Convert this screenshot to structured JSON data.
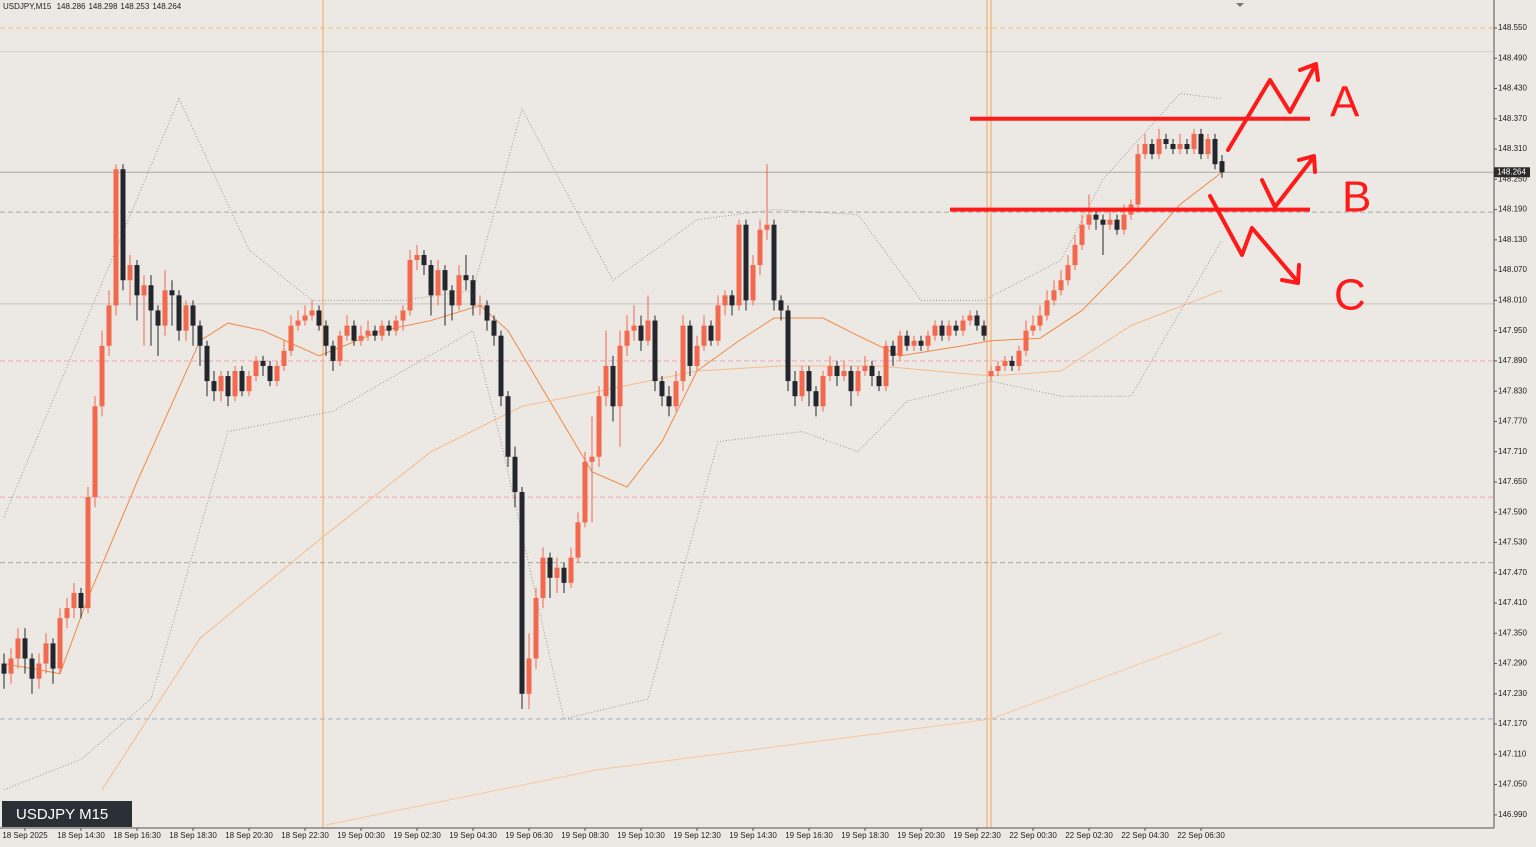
{
  "chart_data": {
    "type": "candlestick",
    "symbol": "USDJPY,M15",
    "badge": "USDJPY M15",
    "bull_color": "#f2694d",
    "bear_color": "#23272d",
    "ylim": [
      146.964,
      148.6055
    ],
    "yticks": [
      {
        "value": 148.55,
        "label": "148.550"
      },
      {
        "value": 148.49,
        "label": "148.490"
      },
      {
        "value": 148.43,
        "label": "148.430"
      },
      {
        "value": 148.37,
        "label": "148.370"
      },
      {
        "value": 148.31,
        "label": "148.310"
      },
      {
        "value": 148.25,
        "label": "148.250"
      },
      {
        "value": 148.19,
        "label": "148.190"
      },
      {
        "value": 148.13,
        "label": "148.130"
      },
      {
        "value": 148.07,
        "label": "148.070"
      },
      {
        "value": 148.01,
        "label": "148.010"
      },
      {
        "value": 147.95,
        "label": "147.950"
      },
      {
        "value": 147.89,
        "label": "147.890"
      },
      {
        "value": 147.83,
        "label": "147.830"
      },
      {
        "value": 147.77,
        "label": "147.770"
      },
      {
        "value": 147.71,
        "label": "147.710"
      },
      {
        "value": 147.65,
        "label": "147.650"
      },
      {
        "value": 147.59,
        "label": "147.590"
      },
      {
        "value": 147.53,
        "label": "147.530"
      },
      {
        "value": 147.47,
        "label": "147.470"
      },
      {
        "value": 147.41,
        "label": "147.410"
      },
      {
        "value": 147.35,
        "label": "147.350"
      },
      {
        "value": 147.29,
        "label": "147.290"
      },
      {
        "value": 147.23,
        "label": "147.230"
      },
      {
        "value": 147.17,
        "label": "147.170"
      },
      {
        "value": 147.11,
        "label": "147.110"
      },
      {
        "value": 147.05,
        "label": "147.050"
      },
      {
        "value": 146.99,
        "label": "146.990"
      }
    ],
    "categories": [
      null,
      null,
      null,
      "18 Sep 2025",
      null,
      null,
      null,
      null,
      null,
      null,
      null,
      "18 Sep 14:30",
      null,
      null,
      null,
      null,
      null,
      null,
      null,
      "18 Sep 16:30",
      null,
      null,
      null,
      null,
      null,
      null,
      null,
      "18 Sep 18:30",
      null,
      null,
      null,
      null,
      null,
      null,
      null,
      "18 Sep 20:30",
      null,
      null,
      null,
      null,
      null,
      null,
      null,
      "18 Sep 22:30",
      null,
      null,
      null,
      null,
      null,
      null,
      null,
      "19 Sep 00:30",
      null,
      null,
      null,
      null,
      null,
      null,
      null,
      "19 Sep 02:30",
      null,
      null,
      null,
      null,
      null,
      null,
      null,
      "19 Sep 04:30",
      null,
      null,
      null,
      null,
      null,
      null,
      null,
      "19 Sep 06:30",
      null,
      null,
      null,
      null,
      null,
      null,
      null,
      "19 Sep 08:30",
      null,
      null,
      null,
      null,
      null,
      null,
      null,
      "19 Sep 10:30",
      null,
      null,
      null,
      null,
      null,
      null,
      null,
      "19 Sep 12:30",
      null,
      null,
      null,
      null,
      null,
      null,
      null,
      "19 Sep 14:30",
      null,
      null,
      null,
      null,
      null,
      null,
      null,
      "19 Sep 16:30",
      null,
      null,
      null,
      null,
      null,
      null,
      null,
      "19 Sep 18:30",
      null,
      null,
      null,
      null,
      null,
      null,
      null,
      "19 Sep 20:30",
      null,
      null,
      null,
      null,
      null,
      null,
      null,
      "19 Sep 22:30",
      null,
      null,
      null,
      null,
      null,
      null,
      null,
      "22 Sep 00:30",
      null,
      null,
      null,
      null,
      null,
      null,
      null,
      "22 Sep 02:30",
      null,
      null,
      null,
      null,
      null,
      null,
      null,
      "22 Sep 04:30",
      null,
      null,
      null,
      null,
      null,
      null,
      null,
      "22 Sep 06:30",
      null,
      null,
      null
    ],
    "open": [
      147.29,
      147.27,
      147.3,
      147.34,
      147.3,
      147.26,
      147.29,
      147.33,
      147.28,
      147.38,
      147.4,
      147.43,
      147.4,
      147.62,
      147.8,
      147.92,
      148.0,
      148.27,
      148.05,
      148.08,
      148.02,
      148.04,
      147.99,
      147.96,
      148.03,
      148.02,
      147.95,
      148.0,
      147.96,
      147.92,
      147.85,
      147.83,
      147.86,
      147.82,
      147.87,
      147.83,
      147.86,
      147.89,
      147.88,
      147.85,
      147.88,
      147.91,
      147.96,
      147.97,
      147.98,
      147.99,
      147.96,
      147.92,
      147.89,
      147.94,
      147.96,
      147.93,
      147.94,
      147.95,
      147.94,
      147.96,
      147.95,
      147.97,
      147.99,
      148.09,
      148.1,
      148.08,
      148.02,
      148.07,
      148.03,
      148.0,
      148.06,
      148.05,
      148.0,
      148.0,
      147.97,
      147.94,
      147.82,
      147.7,
      147.63,
      147.23,
      147.3,
      147.42,
      147.5,
      147.46,
      147.48,
      147.45,
      147.5,
      147.57,
      147.69,
      147.7,
      147.82,
      147.88,
      147.8,
      147.92,
      147.95,
      147.96,
      147.93,
      147.97,
      147.85,
      147.82,
      147.8,
      147.85,
      147.96,
      147.88,
      147.92,
      147.96,
      147.93,
      148.0,
      148.02,
      148.0,
      148.16,
      148.01,
      148.08,
      148.15,
      148.16,
      148.01,
      147.99,
      147.85,
      147.82,
      147.87,
      147.83,
      147.8,
      147.86,
      147.88,
      147.86,
      147.87,
      147.83,
      147.87,
      147.88,
      147.86,
      147.84,
      147.92,
      147.9,
      147.94,
      147.92,
      147.93,
      147.92,
      147.94,
      147.96,
      147.94,
      147.96,
      147.95,
      147.97,
      147.98,
      147.96,
      147.86,
      147.87,
      147.88,
      147.89,
      147.88,
      147.91,
      147.95,
      147.96,
      147.98,
      148.01,
      148.03,
      148.05,
      148.08,
      148.12,
      148.16,
      148.18,
      148.17,
      148.16,
      148.17,
      148.15,
      148.18,
      148.2,
      148.3,
      148.32,
      148.3,
      148.33,
      148.32,
      148.31,
      148.32,
      148.31,
      148.34,
      148.3,
      148.33,
      148.286
    ],
    "high": [
      147.31,
      147.32,
      147.36,
      147.36,
      147.31,
      147.31,
      147.35,
      147.34,
      147.4,
      147.42,
      147.45,
      147.44,
      147.64,
      147.82,
      147.95,
      148.03,
      148.28,
      148.28,
      148.1,
      148.09,
      148.06,
      148.06,
      148.0,
      148.07,
      148.05,
      148.03,
      148.01,
      148.01,
      147.97,
      147.93,
      147.87,
      147.87,
      147.87,
      147.88,
      147.88,
      147.87,
      147.9,
      147.9,
      147.89,
      147.89,
      147.93,
      147.98,
      147.99,
      148.0,
      148.01,
      148.0,
      147.97,
      147.93,
      147.95,
      147.98,
      147.97,
      147.96,
      147.97,
      147.96,
      147.97,
      147.97,
      147.98,
      148.0,
      148.11,
      148.12,
      148.11,
      148.09,
      148.09,
      148.08,
      148.04,
      148.08,
      148.1,
      148.06,
      148.02,
      148.01,
      147.98,
      147.95,
      147.83,
      147.72,
      147.64,
      147.35,
      147.44,
      147.52,
      147.51,
      147.5,
      147.49,
      147.52,
      147.59,
      147.71,
      147.78,
      147.84,
      147.95,
      147.9,
      147.95,
      147.98,
      148.0,
      147.98,
      148.02,
      147.98,
      147.86,
      147.84,
      147.87,
      147.98,
      147.97,
      147.94,
      147.98,
      147.97,
      148.02,
      148.03,
      148.03,
      148.17,
      148.17,
      148.1,
      148.17,
      148.28,
      148.17,
      148.02,
      148.0,
      147.87,
      147.88,
      147.88,
      147.84,
      147.87,
      147.9,
      147.89,
      147.89,
      147.88,
      147.88,
      147.9,
      147.89,
      147.87,
      147.93,
      147.93,
      147.95,
      147.95,
      147.94,
      147.94,
      147.95,
      147.97,
      147.97,
      147.97,
      147.97,
      147.98,
      147.99,
      147.99,
      147.97,
      147.88,
      147.89,
      147.9,
      147.9,
      147.92,
      147.97,
      147.98,
      148.0,
      148.03,
      148.05,
      148.07,
      148.1,
      148.14,
      148.18,
      148.22,
      148.19,
      148.18,
      148.19,
      148.18,
      148.2,
      148.21,
      148.32,
      148.34,
      148.33,
      148.35,
      148.34,
      148.33,
      148.34,
      148.33,
      148.35,
      148.35,
      148.34,
      148.34,
      148.298
    ],
    "low": [
      147.24,
      147.25,
      147.28,
      147.27,
      147.23,
      147.24,
      147.27,
      147.25,
      147.27,
      147.36,
      147.38,
      147.38,
      147.39,
      147.6,
      147.78,
      147.9,
      147.98,
      148.03,
      148.0,
      147.97,
      147.92,
      147.92,
      147.9,
      147.94,
      147.96,
      147.93,
      147.93,
      147.92,
      147.88,
      147.82,
      147.81,
      147.81,
      147.8,
      147.81,
      147.82,
      147.82,
      147.85,
      147.86,
      147.84,
      147.84,
      147.87,
      147.9,
      147.95,
      147.96,
      147.97,
      147.95,
      147.9,
      147.87,
      147.88,
      147.93,
      147.92,
      147.92,
      147.93,
      147.93,
      147.93,
      147.94,
      147.94,
      147.95,
      147.98,
      148.07,
      148.06,
      147.98,
      148.0,
      147.96,
      147.97,
      147.99,
      148.03,
      147.98,
      147.98,
      147.95,
      147.92,
      147.8,
      147.68,
      147.6,
      147.2,
      147.2,
      147.28,
      147.4,
      147.42,
      147.43,
      147.43,
      147.44,
      147.49,
      147.56,
      147.57,
      147.68,
      147.8,
      147.77,
      147.72,
      147.9,
      147.93,
      147.91,
      147.92,
      147.83,
      147.8,
      147.78,
      147.79,
      147.83,
      147.86,
      147.87,
      147.91,
      147.92,
      147.92,
      147.98,
      147.98,
      147.99,
      147.99,
      148.0,
      148.06,
      148.13,
      147.99,
      147.97,
      147.83,
      147.8,
      147.81,
      147.8,
      147.78,
      147.79,
      147.85,
      147.84,
      147.85,
      147.8,
      147.82,
      147.86,
      147.84,
      147.83,
      147.83,
      147.88,
      147.89,
      147.91,
      147.91,
      147.91,
      147.91,
      147.93,
      147.93,
      147.93,
      147.94,
      147.94,
      147.96,
      147.95,
      147.93,
      147.85,
      147.86,
      147.87,
      147.87,
      147.87,
      147.9,
      147.94,
      147.95,
      147.97,
      148.0,
      148.02,
      148.04,
      148.07,
      148.11,
      148.15,
      148.15,
      148.1,
      148.15,
      148.14,
      148.14,
      148.17,
      148.19,
      148.29,
      148.29,
      148.29,
      148.31,
      148.3,
      148.3,
      148.3,
      148.3,
      148.29,
      148.29,
      148.27,
      148.253
    ],
    "close": [
      147.27,
      147.3,
      147.34,
      147.3,
      147.26,
      147.29,
      147.33,
      147.28,
      147.38,
      147.4,
      147.43,
      147.4,
      147.62,
      147.8,
      147.92,
      148.0,
      148.27,
      148.05,
      148.08,
      148.02,
      148.04,
      147.99,
      147.96,
      148.03,
      148.02,
      147.95,
      148.0,
      147.96,
      147.92,
      147.85,
      147.83,
      147.86,
      147.82,
      147.87,
      147.83,
      147.86,
      147.89,
      147.88,
      147.85,
      147.88,
      147.91,
      147.96,
      147.97,
      147.98,
      147.99,
      147.96,
      147.92,
      147.89,
      147.94,
      147.96,
      147.93,
      147.94,
      147.95,
      147.94,
      147.96,
      147.95,
      147.97,
      147.99,
      148.09,
      148.1,
      148.08,
      148.02,
      148.07,
      148.03,
      148.0,
      148.06,
      148.05,
      148.0,
      148.0,
      147.97,
      147.94,
      147.82,
      147.7,
      147.63,
      147.23,
      147.3,
      147.42,
      147.5,
      147.46,
      147.48,
      147.45,
      147.5,
      147.57,
      147.69,
      147.7,
      147.82,
      147.88,
      147.8,
      147.92,
      147.95,
      147.96,
      147.93,
      147.97,
      147.85,
      147.82,
      147.8,
      147.85,
      147.96,
      147.88,
      147.92,
      147.96,
      147.93,
      148.0,
      148.02,
      148.0,
      148.16,
      148.01,
      148.08,
      148.15,
      148.16,
      148.01,
      147.99,
      147.85,
      147.82,
      147.87,
      147.83,
      147.8,
      147.86,
      147.88,
      147.86,
      147.87,
      147.83,
      147.87,
      147.88,
      147.86,
      147.84,
      147.92,
      147.9,
      147.94,
      147.92,
      147.93,
      147.92,
      147.94,
      147.96,
      147.94,
      147.96,
      147.95,
      147.97,
      147.98,
      147.96,
      147.94,
      147.87,
      147.88,
      147.89,
      147.88,
      147.91,
      147.95,
      147.96,
      147.98,
      148.01,
      148.03,
      148.05,
      148.08,
      148.12,
      148.16,
      148.18,
      148.17,
      148.16,
      148.17,
      148.15,
      148.18,
      148.2,
      148.3,
      148.32,
      148.3,
      148.33,
      148.32,
      148.31,
      148.32,
      148.31,
      148.34,
      148.3,
      148.33,
      148.28,
      148.264
    ],
    "lines": [
      {
        "color": "#f08a45",
        "style": "solid",
        "x": [
          0,
          8,
          12,
          19,
          28,
          32,
          37,
          45,
          54,
          61,
          68,
          72,
          78,
          84,
          89,
          94,
          99,
          105,
          110,
          117,
          122,
          128,
          137,
          141,
          148,
          154,
          161,
          168,
          174
        ],
        "values": [
          147.29,
          147.27,
          147.42,
          147.65,
          147.93,
          147.965,
          147.95,
          147.9,
          147.95,
          147.97,
          148.0,
          147.95,
          147.81,
          147.67,
          147.64,
          147.73,
          147.87,
          147.93,
          147.975,
          147.975,
          147.94,
          147.9,
          147.92,
          147.93,
          147.935,
          147.99,
          148.09,
          148.2,
          148.264
        ]
      },
      {
        "color": "#f7bb8c",
        "style": "solid",
        "x": [
          14,
          28,
          45,
          61,
          74,
          85,
          99,
          111,
          125,
          141,
          151,
          161,
          174
        ],
        "values": [
          147.04,
          147.34,
          147.535,
          147.71,
          147.8,
          147.83,
          147.87,
          147.88,
          147.88,
          147.86,
          147.87,
          147.96,
          148.03
        ]
      },
      {
        "color": "#f7c79c",
        "style": "solid",
        "x": [
          46,
          85,
          141,
          174
        ],
        "values": [
          146.97,
          147.08,
          147.18,
          147.35
        ]
      },
      {
        "color": "#9a9a9a",
        "style": "dotted",
        "x": [
          0,
          25,
          35,
          44,
          57,
          67,
          74,
          87,
          99,
          110,
          122,
          131,
          140,
          151,
          157,
          168,
          174
        ],
        "values": [
          147.58,
          148.41,
          148.11,
          148.01,
          148.01,
          148.03,
          148.39,
          148.05,
          148.17,
          148.19,
          148.18,
          148.01,
          148.01,
          148.09,
          148.25,
          148.42,
          148.41
        ]
      },
      {
        "color": "#9a9a9a",
        "style": "dotted",
        "x": [
          0,
          11,
          21,
          32,
          47,
          67,
          71,
          80,
          92,
          102,
          114,
          122,
          129,
          141,
          151,
          161,
          174
        ],
        "values": [
          147.04,
          147.1,
          147.22,
          147.75,
          147.79,
          147.95,
          147.73,
          147.18,
          147.22,
          147.73,
          147.75,
          147.71,
          147.81,
          147.85,
          147.82,
          147.82,
          148.13
        ]
      }
    ],
    "levels": [
      {
        "value": 148.55,
        "color": "#f3c27d",
        "dash": true
      },
      {
        "value": 148.503,
        "color": "#d0cccc",
        "dash": false
      },
      {
        "value": 148.185,
        "color": "#a9a9a9",
        "dash": true
      },
      {
        "value": 148.003,
        "color": "#c8c4c4",
        "dash": false
      },
      {
        "value": 147.89,
        "color": "#f2a9b5",
        "dash": true
      },
      {
        "value": 147.62,
        "color": "#f2a9b5",
        "dash": true
      },
      {
        "value": 147.49,
        "color": "#a8aa9a",
        "dash": true
      },
      {
        "value": 147.18,
        "color": "#9fb3c8",
        "dash": true
      }
    ],
    "annotations": [
      {
        "label": "A",
        "value": 148.37
      },
      {
        "label": "B",
        "value": 148.19
      },
      {
        "label": "C"
      }
    ]
  }
}
